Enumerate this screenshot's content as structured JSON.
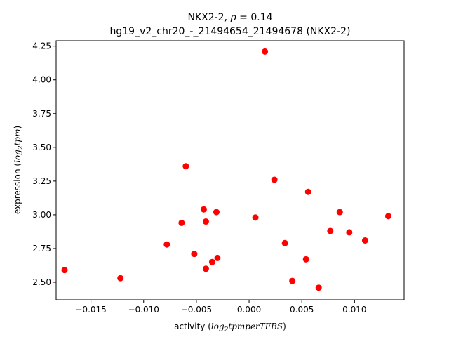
{
  "chart_data": {
    "type": "scatter",
    "title_line1_prefix": "NKX2-2, ",
    "title_line1_rho": "ρ",
    "title_line1_suffix": " = 0.14",
    "title_line2": "hg19_v2_chr20_-_21494654_21494678 (NKX2-2)",
    "xlabel_prefix": "activity (",
    "xlabel_math_a": "log",
    "xlabel_math_sub": "2",
    "xlabel_math_b": "tpmperTFBS",
    "xlabel_suffix": ")",
    "ylabel_prefix": "expression (",
    "ylabel_math_a": "log",
    "ylabel_math_sub": "2",
    "ylabel_math_b": "tpm",
    "ylabel_suffix": ")",
    "xlim": [
      -0.0183,
      0.0147
    ],
    "ylim": [
      2.37,
      4.29
    ],
    "x_ticks": [
      -0.015,
      -0.01,
      -0.005,
      0.0,
      0.005,
      0.01
    ],
    "x_tick_labels": [
      "−0.015",
      "−0.010",
      "−0.005",
      "0.000",
      "0.005",
      "0.010"
    ],
    "y_ticks": [
      2.5,
      2.75,
      3.0,
      3.25,
      3.5,
      3.75,
      4.0,
      4.25
    ],
    "y_tick_labels": [
      "2.50",
      "2.75",
      "3.00",
      "3.25",
      "3.50",
      "3.75",
      "4.00",
      "4.25"
    ],
    "marker_color": "#ff0000",
    "series": [
      {
        "points": [
          [
            -0.0175,
            2.59
          ],
          [
            -0.0122,
            2.53
          ],
          [
            -0.0078,
            2.78
          ],
          [
            -0.0064,
            2.94
          ],
          [
            -0.006,
            3.36
          ],
          [
            -0.0052,
            2.71
          ],
          [
            -0.0043,
            3.04
          ],
          [
            -0.0041,
            2.95
          ],
          [
            -0.0041,
            2.6
          ],
          [
            -0.0035,
            2.65
          ],
          [
            -0.0031,
            3.02
          ],
          [
            -0.003,
            2.68
          ],
          [
            0.0006,
            2.98
          ],
          [
            0.0015,
            4.21
          ],
          [
            0.0024,
            3.26
          ],
          [
            0.0034,
            2.79
          ],
          [
            0.0041,
            2.51
          ],
          [
            0.0054,
            2.67
          ],
          [
            0.0056,
            3.17
          ],
          [
            0.0066,
            2.46
          ],
          [
            0.0077,
            2.88
          ],
          [
            0.0086,
            3.02
          ],
          [
            0.0095,
            2.87
          ],
          [
            0.011,
            2.81
          ],
          [
            0.0132,
            2.99
          ]
        ]
      }
    ]
  }
}
